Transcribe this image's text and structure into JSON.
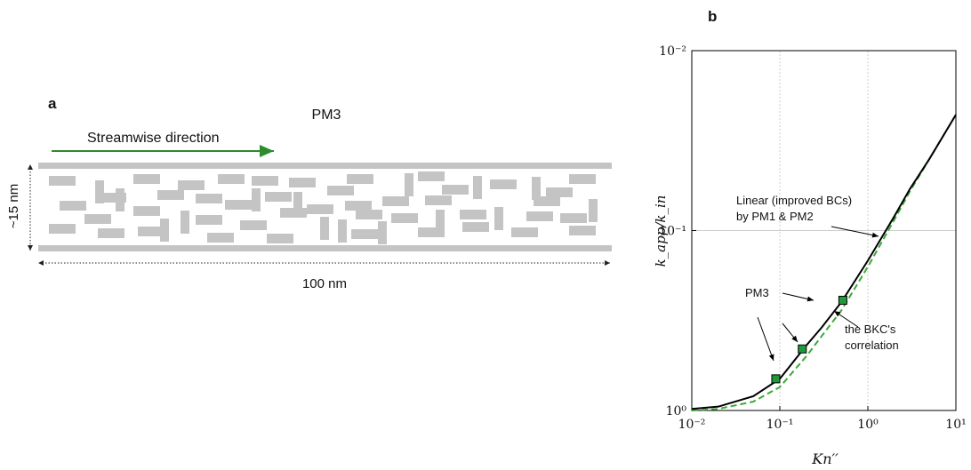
{
  "diagram": {
    "label": "a",
    "title": "PM3",
    "direction": "Streamwise direction",
    "height": "~15 nm",
    "length": "100 nm"
  },
  "chart_data": {
    "type": "line",
    "label": "b",
    "x_label": "Kn′′",
    "y_label": "k_app/k_in",
    "xscale": "log",
    "yscale": "log",
    "grid": true,
    "xlim": [
      0.01,
      10
    ],
    "ylim": [
      1,
      0.01
    ],
    "xticks": [
      {
        "value": 0.01,
        "label": "10⁻²"
      },
      {
        "value": 0.1,
        "label": "10⁻¹"
      },
      {
        "value": 1,
        "label": "10⁰"
      },
      {
        "value": 10,
        "label": "10¹"
      }
    ],
    "yticks": [
      {
        "value": 1,
        "label": "10⁰"
      },
      {
        "value": 0.1,
        "label": "10⁻¹"
      },
      {
        "value": 0.01,
        "label": "10⁻²"
      }
    ],
    "series": [
      {
        "color": "#000000",
        "style": "solid",
        "x": [
          0.01,
          0.02,
          0.05,
          0.1,
          0.2,
          0.3,
          0.5,
          1,
          2,
          3,
          5,
          10
        ],
        "values": [
          0.98,
          0.952,
          0.833,
          0.667,
          0.435,
          0.345,
          0.25,
          0.147,
          0.0833,
          0.0588,
          0.04,
          0.0227
        ]
      },
      {
        "color": "#3aaa35",
        "style": "dashed",
        "x": [
          0.01,
          0.02,
          0.05,
          0.1,
          0.2,
          0.3,
          0.5,
          1,
          2,
          3,
          5,
          10
        ],
        "values": [
          1.0,
          0.98,
          0.893,
          0.741,
          0.5,
          0.385,
          0.278,
          0.159,
          0.087,
          0.0606,
          0.04,
          0.0227
        ]
      },
      {
        "color": "#1e9a3a",
        "style": "markers",
        "x": [
          0.09,
          0.18,
          0.52
        ],
        "values": [
          0.667,
          0.455,
          0.244
        ]
      }
    ],
    "annotations": [
      {
        "lines": [
          "Linear (improved BCs)",
          "by PM1 & PM2"
        ]
      },
      {
        "lines": [
          "PM3"
        ]
      },
      {
        "lines": [
          "the BKC's",
          "correlation"
        ]
      }
    ]
  }
}
